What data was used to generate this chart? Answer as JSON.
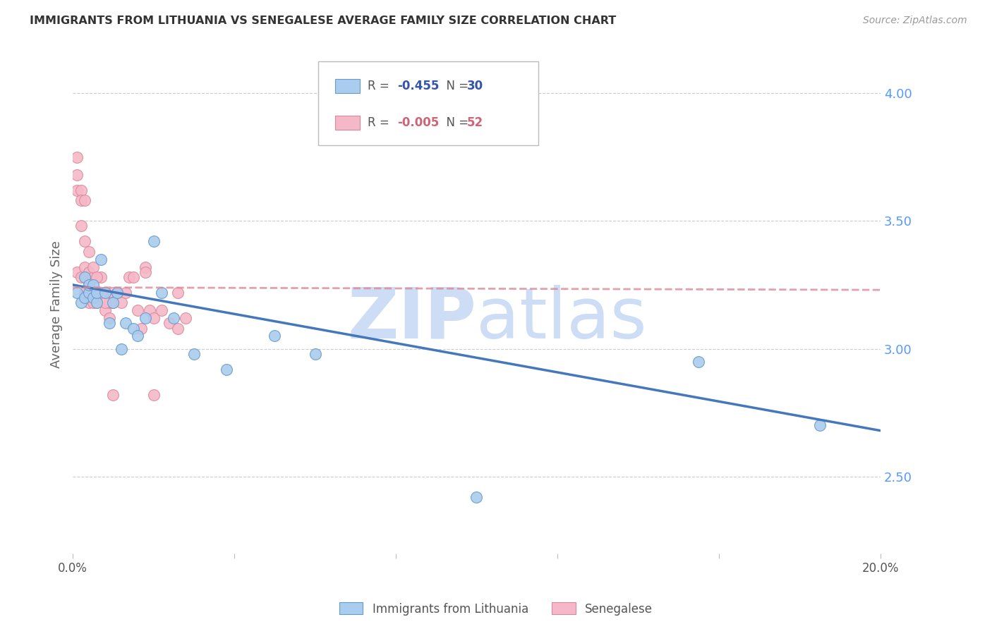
{
  "title": "IMMIGRANTS FROM LITHUANIA VS SENEGALESE AVERAGE FAMILY SIZE CORRELATION CHART",
  "source": "Source: ZipAtlas.com",
  "ylabel": "Average Family Size",
  "right_yticks": [
    2.5,
    3.0,
    3.5,
    4.0
  ],
  "xlim": [
    0.0,
    0.2
  ],
  "ylim": [
    2.2,
    4.15
  ],
  "legend_blue_r": "-0.455",
  "legend_blue_n": "30",
  "legend_pink_r": "-0.005",
  "legend_pink_n": "52",
  "blue_scatter_x": [
    0.001,
    0.002,
    0.003,
    0.003,
    0.004,
    0.004,
    0.005,
    0.005,
    0.006,
    0.006,
    0.007,
    0.008,
    0.009,
    0.01,
    0.011,
    0.012,
    0.013,
    0.015,
    0.016,
    0.018,
    0.02,
    0.022,
    0.025,
    0.03,
    0.038,
    0.05,
    0.06,
    0.1,
    0.155,
    0.185
  ],
  "blue_scatter_y": [
    3.22,
    3.18,
    3.2,
    3.28,
    3.22,
    3.25,
    3.2,
    3.25,
    3.18,
    3.22,
    3.35,
    3.22,
    3.1,
    3.18,
    3.22,
    3.0,
    3.1,
    3.08,
    3.05,
    3.12,
    3.42,
    3.22,
    3.12,
    2.98,
    2.92,
    3.05,
    2.98,
    2.42,
    2.95,
    2.7
  ],
  "pink_scatter_x": [
    0.001,
    0.001,
    0.001,
    0.001,
    0.002,
    0.002,
    0.002,
    0.003,
    0.003,
    0.003,
    0.004,
    0.004,
    0.004,
    0.004,
    0.005,
    0.005,
    0.005,
    0.006,
    0.006,
    0.007,
    0.007,
    0.008,
    0.008,
    0.009,
    0.01,
    0.01,
    0.011,
    0.012,
    0.013,
    0.014,
    0.015,
    0.016,
    0.017,
    0.018,
    0.019,
    0.02,
    0.022,
    0.024,
    0.026,
    0.028,
    0.002,
    0.003,
    0.004,
    0.005,
    0.006,
    0.007,
    0.008,
    0.009,
    0.01,
    0.018,
    0.02,
    0.026
  ],
  "pink_scatter_y": [
    3.75,
    3.68,
    3.62,
    3.3,
    3.62,
    3.58,
    3.28,
    3.58,
    3.32,
    3.22,
    3.3,
    3.26,
    3.22,
    3.18,
    3.28,
    3.22,
    3.18,
    3.22,
    3.18,
    3.28,
    3.22,
    3.22,
    3.15,
    3.18,
    3.22,
    3.18,
    3.22,
    3.18,
    3.22,
    3.28,
    3.28,
    3.15,
    3.08,
    3.32,
    3.15,
    3.12,
    3.15,
    3.1,
    3.08,
    3.12,
    3.48,
    3.42,
    3.38,
    3.32,
    3.28,
    3.22,
    3.18,
    3.12,
    2.82,
    3.3,
    2.82,
    3.22
  ],
  "blue_line_x": [
    0.0,
    0.2
  ],
  "blue_line_y": [
    3.25,
    2.68
  ],
  "pink_line_x": [
    0.0,
    0.2
  ],
  "pink_line_y": [
    3.24,
    3.23
  ],
  "blue_dot_color": "#aaccee",
  "blue_edge_color": "#6699cc",
  "pink_dot_color": "#f5b8c8",
  "pink_edge_color": "#dd8899",
  "blue_line_color": "#4477bb",
  "pink_line_color": "#dd8899",
  "grid_color": "#cccccc",
  "title_color": "#333333",
  "right_axis_color": "#5599ff",
  "watermark_color": "#ccddf5",
  "legend_r_color_blue": "#3355aa",
  "legend_n_color_blue": "#3355aa",
  "legend_r_color_pink": "#cc6677",
  "legend_n_color_pink": "#cc6677"
}
